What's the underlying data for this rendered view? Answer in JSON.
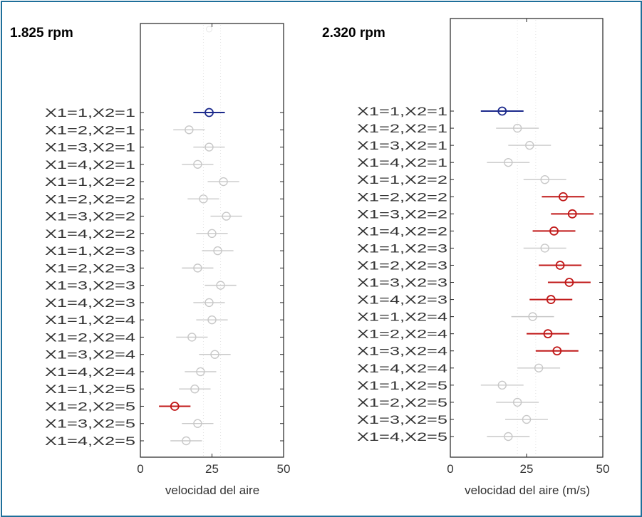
{
  "chart_data": [
    {
      "type": "scatter",
      "subtype": "interval-plot",
      "title": "1.825 rpm",
      "xlabel": "velocidad del aire",
      "ylabel": "",
      "xlim": [
        0,
        50
      ],
      "xticks": [
        "0",
        "25",
        "50"
      ],
      "categories": [
        "X1=1,X2=1",
        "X1=2,X2=1",
        "X1=3,X2=1",
        "X1=4,X2=1",
        "X1=1,X2=2",
        "X1=2,X2=2",
        "X1=3,X2=2",
        "X1=4,X2=2",
        "X1=1,X2=3",
        "X1=2,X2=3",
        "X1=3,X2=3",
        "X1=4,X2=3",
        "X1=1,X2=4",
        "X1=2,X2=4",
        "X1=3,X2=4",
        "X1=4,X2=4",
        "X1=1,X2=5",
        "X1=2,X2=5",
        "X1=3,X2=5",
        "X1=4,X2=5"
      ],
      "means": [
        24,
        17,
        24,
        20,
        29,
        22,
        30,
        25,
        27,
        20,
        28,
        24,
        25,
        18,
        26,
        21,
        19,
        12,
        20,
        16
      ],
      "halfwidth": 5.5,
      "highlight": {
        "0": "#1c2a8c",
        "17": "#c01818"
      },
      "default_color": "#c8c8c8",
      "grid": false
    },
    {
      "type": "scatter",
      "subtype": "interval-plot",
      "title": "2.320 rpm",
      "xlabel": "velocidad del aire (m/s)",
      "ylabel": "",
      "xlim": [
        0,
        50
      ],
      "xticks": [
        "0",
        "25",
        "50"
      ],
      "categories": [
        "X1=1,X2=1",
        "X1=2,X2=1",
        "X1=3,X2=1",
        "X1=4,X2=1",
        "X1=1,X2=2",
        "X1=2,X2=2",
        "X1=3,X2=2",
        "X1=4,X2=2",
        "X1=1,X2=3",
        "X1=2,X2=3",
        "X1=3,X2=3",
        "X1=4,X2=3",
        "X1=1,X2=4",
        "X1=2,X2=4",
        "X1=3,X2=4",
        "X1=4,X2=4",
        "X1=1,X2=5",
        "X1=2,X2=5",
        "X1=3,X2=5",
        "X1=4,X2=5"
      ],
      "means": [
        17,
        22,
        26,
        19,
        31,
        37,
        40,
        34,
        31,
        36,
        39,
        33,
        27,
        32,
        35,
        29,
        17,
        22,
        25,
        19
      ],
      "halfwidth": 7,
      "highlight": {
        "0": "#1c2a8c",
        "5": "#c01818",
        "6": "#c01818",
        "7": "#c01818",
        "9": "#c01818",
        "10": "#c01818",
        "11": "#c01818",
        "13": "#c01818",
        "14": "#c01818"
      },
      "default_color": "#c8c8c8",
      "grid": false
    }
  ]
}
